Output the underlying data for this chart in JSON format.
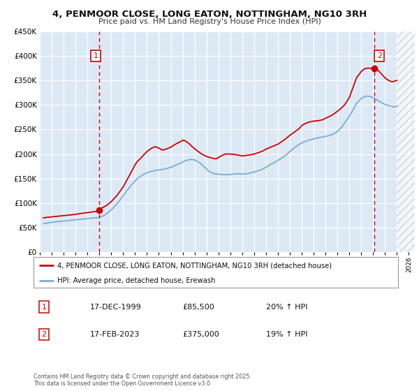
{
  "title": "4, PENMOOR CLOSE, LONG EATON, NOTTINGHAM, NG10 3RH",
  "subtitle": "Price paid vs. HM Land Registry's House Price Index (HPI)",
  "legend_label_red": "4, PENMOOR CLOSE, LONG EATON, NOTTINGHAM, NG10 3RH (detached house)",
  "legend_label_blue": "HPI: Average price, detached house, Erewash",
  "annotation1_date": "17-DEC-1999",
  "annotation1_price": "£85,500",
  "annotation1_hpi": "20% ↑ HPI",
  "annotation2_date": "17-FEB-2023",
  "annotation2_price": "£375,000",
  "annotation2_hpi": "19% ↑ HPI",
  "footer": "Contains HM Land Registry data © Crown copyright and database right 2025.\nThis data is licensed under the Open Government Licence v3.0.",
  "ylim": [
    0,
    450000
  ],
  "xlim_start": 1995.0,
  "xlim_end": 2026.5,
  "hatch_start": 2025.0,
  "red_color": "#cc0000",
  "blue_color": "#7aadd4",
  "bg_color": "#dce9f5",
  "grid_color": "#ffffff",
  "vline1_x": 2000.0,
  "vline2_x": 2023.12,
  "marker1_x": 2000.0,
  "marker1_y": 85500,
  "marker2_x": 2023.12,
  "marker2_y": 375000,
  "red_x": [
    1995.3,
    1995.6,
    1996.0,
    1996.4,
    1996.8,
    1997.2,
    1997.6,
    1998.0,
    1998.2,
    1998.5,
    1998.8,
    1999.1,
    1999.4,
    1999.7,
    1999.95,
    2000.2,
    2000.6,
    2001.0,
    2001.5,
    2002.0,
    2002.5,
    2003.0,
    2003.2,
    2003.5,
    2003.8,
    2004.1,
    2004.4,
    2004.7,
    2005.0,
    2005.3,
    2005.6,
    2006.0,
    2006.4,
    2006.8,
    2007.0,
    2007.2,
    2007.5,
    2007.8,
    2008.2,
    2008.6,
    2009.0,
    2009.4,
    2009.8,
    2010.0,
    2010.3,
    2010.6,
    2011.0,
    2011.4,
    2011.8,
    2012.0,
    2012.3,
    2012.6,
    2013.0,
    2013.4,
    2013.8,
    2014.0,
    2014.3,
    2014.6,
    2015.0,
    2015.3,
    2015.6,
    2016.0,
    2016.4,
    2016.8,
    2017.0,
    2017.3,
    2017.6,
    2018.0,
    2018.4,
    2018.8,
    2019.0,
    2019.3,
    2019.6,
    2020.0,
    2020.3,
    2020.6,
    2021.0,
    2021.3,
    2021.6,
    2022.0,
    2022.3,
    2022.6,
    2023.0,
    2023.12,
    2023.4,
    2023.7,
    2024.0,
    2024.3,
    2024.6,
    2025.0
  ],
  "red_y": [
    70000,
    71000,
    72000,
    73000,
    74000,
    75000,
    76000,
    77000,
    78000,
    79000,
    80000,
    81000,
    82000,
    83000,
    85500,
    90000,
    95000,
    103000,
    116000,
    133000,
    155000,
    178000,
    185000,
    192000,
    200000,
    207000,
    212000,
    215000,
    212000,
    208000,
    210000,
    214000,
    220000,
    225000,
    228000,
    227000,
    222000,
    215000,
    207000,
    200000,
    195000,
    192000,
    190000,
    193000,
    197000,
    200000,
    200000,
    199000,
    197000,
    196000,
    197000,
    198000,
    200000,
    203000,
    207000,
    210000,
    213000,
    216000,
    220000,
    225000,
    230000,
    238000,
    245000,
    252000,
    258000,
    262000,
    265000,
    267000,
    268000,
    270000,
    273000,
    276000,
    280000,
    287000,
    293000,
    300000,
    315000,
    335000,
    355000,
    368000,
    374000,
    375000,
    374000,
    375000,
    371000,
    363000,
    355000,
    350000,
    347000,
    350000
  ],
  "blue_x": [
    1995.3,
    1995.6,
    1996.0,
    1996.4,
    1996.8,
    1997.2,
    1997.6,
    1998.0,
    1998.4,
    1998.8,
    1999.2,
    1999.6,
    2000.0,
    2000.4,
    2000.8,
    2001.2,
    2001.6,
    2002.0,
    2002.4,
    2002.8,
    2003.2,
    2003.6,
    2004.0,
    2004.4,
    2004.8,
    2005.2,
    2005.6,
    2006.0,
    2006.4,
    2006.8,
    2007.2,
    2007.6,
    2008.0,
    2008.4,
    2008.8,
    2009.2,
    2009.6,
    2010.0,
    2010.4,
    2010.8,
    2011.2,
    2011.6,
    2012.0,
    2012.4,
    2012.8,
    2013.2,
    2013.6,
    2014.0,
    2014.4,
    2014.8,
    2015.2,
    2015.6,
    2016.0,
    2016.4,
    2016.8,
    2017.2,
    2017.6,
    2018.0,
    2018.4,
    2018.8,
    2019.2,
    2019.6,
    2020.0,
    2020.4,
    2020.8,
    2021.2,
    2021.6,
    2022.0,
    2022.4,
    2022.8,
    2023.2,
    2023.6,
    2024.0,
    2024.4,
    2024.8,
    2025.0
  ],
  "blue_y": [
    58000,
    59000,
    61000,
    62000,
    63000,
    64000,
    65000,
    66000,
    67000,
    68000,
    69000,
    70000,
    71000,
    75000,
    82000,
    91000,
    102000,
    115000,
    128000,
    140000,
    150000,
    157000,
    162000,
    165000,
    167000,
    168000,
    170000,
    173000,
    177000,
    181000,
    186000,
    189000,
    188000,
    183000,
    174000,
    165000,
    160000,
    159000,
    158000,
    158000,
    159000,
    160000,
    159000,
    160000,
    162000,
    165000,
    168000,
    173000,
    179000,
    184000,
    190000,
    196000,
    205000,
    213000,
    220000,
    225000,
    228000,
    231000,
    233000,
    235000,
    237000,
    240000,
    246000,
    256000,
    270000,
    285000,
    303000,
    313000,
    318000,
    317000,
    312000,
    306000,
    301000,
    298000,
    296000,
    298000
  ]
}
